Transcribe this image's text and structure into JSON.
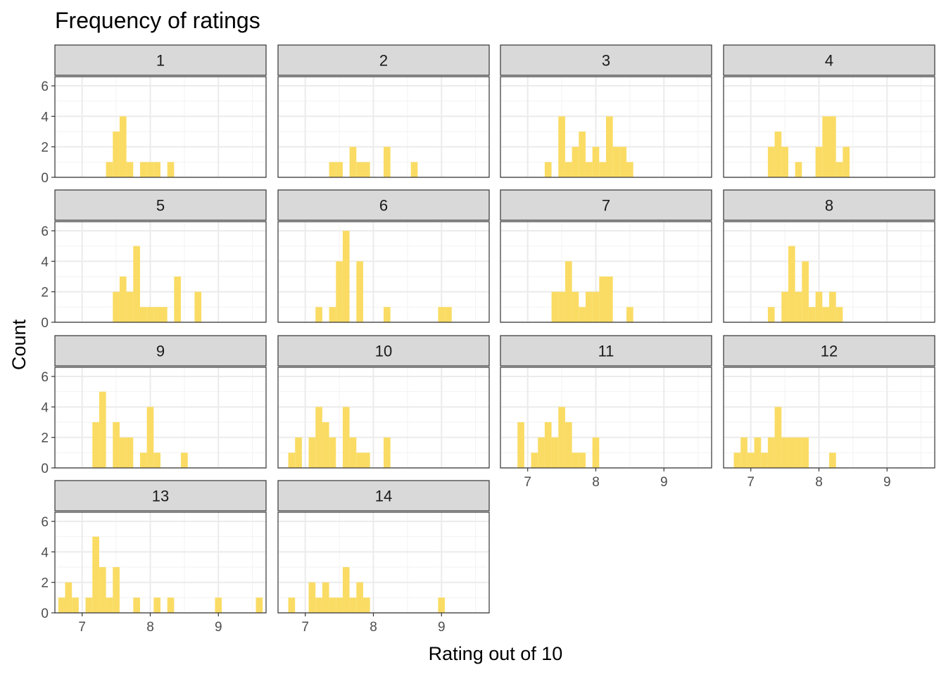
{
  "chart_data": {
    "type": "bar",
    "title": "Frequency of ratings",
    "xlabel": "Rating out of 10",
    "ylabel": "Count",
    "bin_width": 0.1,
    "xlim": [
      6.6,
      9.7
    ],
    "ylim": [
      0,
      6.6
    ],
    "x_ticks": [
      7,
      8,
      9
    ],
    "y_ticks": [
      0,
      2,
      4,
      6
    ],
    "bar_color": "#FADC64",
    "strip_fill": "#D9D9D9",
    "grid": true,
    "panels": [
      {
        "label": "1",
        "bins": [
          [
            7.4,
            1
          ],
          [
            7.5,
            3
          ],
          [
            7.6,
            4
          ],
          [
            7.7,
            1
          ],
          [
            7.9,
            1
          ],
          [
            8.0,
            1
          ],
          [
            8.1,
            1
          ],
          [
            8.3,
            1
          ]
        ]
      },
      {
        "label": "2",
        "bins": [
          [
            7.4,
            1
          ],
          [
            7.5,
            1
          ],
          [
            7.7,
            2
          ],
          [
            7.8,
            1
          ],
          [
            7.9,
            1
          ],
          [
            8.2,
            2
          ],
          [
            8.6,
            1
          ]
        ]
      },
      {
        "label": "3",
        "bins": [
          [
            7.3,
            1
          ],
          [
            7.5,
            4
          ],
          [
            7.6,
            1
          ],
          [
            7.7,
            2
          ],
          [
            7.8,
            3
          ],
          [
            7.9,
            1
          ],
          [
            8.0,
            2
          ],
          [
            8.1,
            1
          ],
          [
            8.2,
            4
          ],
          [
            8.3,
            2
          ],
          [
            8.4,
            2
          ],
          [
            8.5,
            1
          ]
        ]
      },
      {
        "label": "4",
        "bins": [
          [
            7.3,
            2
          ],
          [
            7.4,
            3
          ],
          [
            7.5,
            2
          ],
          [
            7.7,
            1
          ],
          [
            8.0,
            2
          ],
          [
            8.1,
            4
          ],
          [
            8.2,
            4
          ],
          [
            8.3,
            1
          ],
          [
            8.4,
            2
          ]
        ]
      },
      {
        "label": "5",
        "bins": [
          [
            7.5,
            2
          ],
          [
            7.6,
            3
          ],
          [
            7.7,
            2
          ],
          [
            7.8,
            5
          ],
          [
            7.9,
            1
          ],
          [
            8.0,
            1
          ],
          [
            8.1,
            1
          ],
          [
            8.2,
            1
          ],
          [
            8.4,
            3
          ],
          [
            8.7,
            2
          ]
        ]
      },
      {
        "label": "6",
        "bins": [
          [
            7.2,
            1
          ],
          [
            7.4,
            1
          ],
          [
            7.5,
            4
          ],
          [
            7.6,
            6
          ],
          [
            7.8,
            4
          ],
          [
            8.2,
            1
          ],
          [
            9.0,
            1
          ],
          [
            9.1,
            1
          ]
        ]
      },
      {
        "label": "7",
        "bins": [
          [
            7.4,
            2
          ],
          [
            7.5,
            2
          ],
          [
            7.6,
            4
          ],
          [
            7.7,
            2
          ],
          [
            7.8,
            1
          ],
          [
            7.9,
            2
          ],
          [
            8.0,
            2
          ],
          [
            8.1,
            3
          ],
          [
            8.2,
            3
          ],
          [
            8.5,
            1
          ]
        ]
      },
      {
        "label": "8",
        "bins": [
          [
            7.3,
            1
          ],
          [
            7.5,
            2
          ],
          [
            7.6,
            5
          ],
          [
            7.7,
            2
          ],
          [
            7.8,
            4
          ],
          [
            7.9,
            1
          ],
          [
            8.0,
            2
          ],
          [
            8.1,
            1
          ],
          [
            8.2,
            2
          ],
          [
            8.3,
            1
          ]
        ]
      },
      {
        "label": "9",
        "bins": [
          [
            7.2,
            3
          ],
          [
            7.3,
            5
          ],
          [
            7.5,
            3
          ],
          [
            7.6,
            2
          ],
          [
            7.7,
            2
          ],
          [
            7.9,
            1
          ],
          [
            8.0,
            4
          ],
          [
            8.1,
            1
          ],
          [
            8.5,
            1
          ]
        ]
      },
      {
        "label": "10",
        "bins": [
          [
            6.8,
            1
          ],
          [
            6.9,
            2
          ],
          [
            7.1,
            2
          ],
          [
            7.2,
            4
          ],
          [
            7.3,
            3
          ],
          [
            7.4,
            2
          ],
          [
            7.6,
            4
          ],
          [
            7.7,
            2
          ],
          [
            7.8,
            1
          ],
          [
            7.9,
            1
          ],
          [
            8.2,
            2
          ]
        ]
      },
      {
        "label": "11",
        "bins": [
          [
            6.9,
            3
          ],
          [
            7.1,
            1
          ],
          [
            7.2,
            2
          ],
          [
            7.3,
            3
          ],
          [
            7.4,
            2
          ],
          [
            7.5,
            4
          ],
          [
            7.6,
            3
          ],
          [
            7.7,
            1
          ],
          [
            7.8,
            1
          ],
          [
            8.0,
            2
          ]
        ]
      },
      {
        "label": "12",
        "bins": [
          [
            6.8,
            1
          ],
          [
            6.9,
            2
          ],
          [
            7.0,
            1
          ],
          [
            7.1,
            2
          ],
          [
            7.2,
            1
          ],
          [
            7.3,
            2
          ],
          [
            7.4,
            4
          ],
          [
            7.5,
            2
          ],
          [
            7.6,
            2
          ],
          [
            7.7,
            2
          ],
          [
            7.8,
            2
          ],
          [
            8.2,
            1
          ]
        ]
      },
      {
        "label": "13",
        "bins": [
          [
            6.7,
            1
          ],
          [
            6.8,
            2
          ],
          [
            6.9,
            1
          ],
          [
            7.1,
            1
          ],
          [
            7.2,
            5
          ],
          [
            7.3,
            3
          ],
          [
            7.4,
            1
          ],
          [
            7.5,
            3
          ],
          [
            7.8,
            1
          ],
          [
            8.1,
            1
          ],
          [
            8.3,
            1
          ],
          [
            9.0,
            1
          ],
          [
            9.6,
            1
          ]
        ]
      },
      {
        "label": "14",
        "bins": [
          [
            6.8,
            1
          ],
          [
            7.1,
            2
          ],
          [
            7.2,
            1
          ],
          [
            7.3,
            2
          ],
          [
            7.4,
            1
          ],
          [
            7.5,
            1
          ],
          [
            7.6,
            3
          ],
          [
            7.7,
            1
          ],
          [
            7.8,
            2
          ],
          [
            7.9,
            1
          ],
          [
            9.0,
            1
          ]
        ]
      }
    ]
  }
}
